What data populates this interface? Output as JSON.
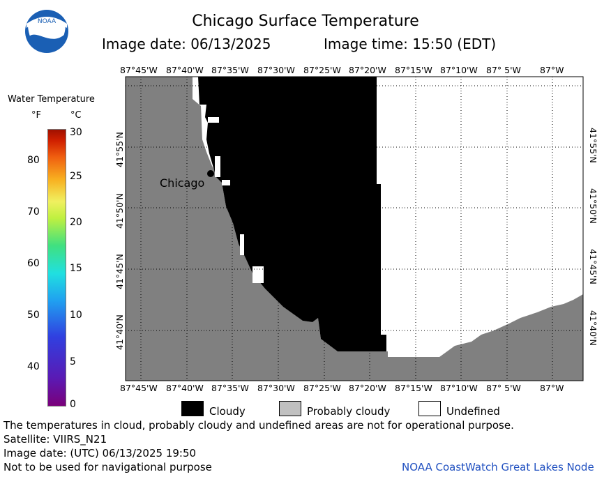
{
  "header": {
    "title": "Chicago Surface Temperature",
    "image_date": "Image date: 06/13/2025",
    "image_time": "Image time: 15:50 (EDT)"
  },
  "map": {
    "longitude_labels": [
      "87°45'W",
      "87°40'W",
      "87°35'W",
      "87°30'W",
      "87°25'W",
      "87°20'W",
      "87°15'W",
      "87°10'W",
      "87° 5'W",
      "87°W"
    ],
    "latitude_labels": [
      "41°55'N",
      "41°50'N",
      "41°45'N",
      "41°40'N"
    ],
    "city": "Chicago",
    "colors": {
      "land": "#808080",
      "cloudy": "#000000",
      "undefined": "#ffffff"
    }
  },
  "colorbar": {
    "title": "Water Temperature",
    "unit_f": "°F",
    "unit_c": "°C",
    "f_ticks": [
      "80",
      "70",
      "60",
      "50",
      "40"
    ],
    "c_ticks": [
      "30",
      "25",
      "20",
      "15",
      "10",
      "5",
      "0"
    ]
  },
  "legend": {
    "cloudy": "Cloudy",
    "probably_cloudy": "Probably cloudy",
    "undefined": "Undefined",
    "colors": {
      "cloudy": "#000000",
      "probably_cloudy": "#c0c0c0",
      "undefined": "#ffffff"
    }
  },
  "footer": {
    "disclaimer": "The temperatures in cloud, probably cloudy and undefined areas are not for operational purpose.",
    "satellite": "Satellite: VIIRS_N21",
    "utc_date": "Image date: (UTC) 06/13/2025  19:50",
    "navigation_warning": "Not to be used for navigational purpose",
    "credit": "NOAA CoastWatch Great Lakes Node"
  },
  "logo_text": "NOAA"
}
